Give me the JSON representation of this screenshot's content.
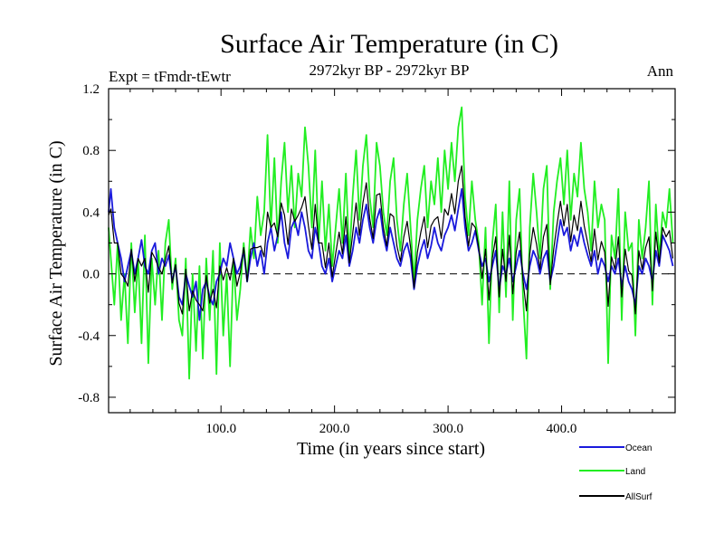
{
  "chart_data": {
    "type": "line",
    "title": "Surface Air Temperature (in C)",
    "subtitle_left": "Expt = tFmdr-tEwtr",
    "subtitle_center": "2972kyr BP - 2972kyr BP",
    "subtitle_right": "Ann",
    "xlabel": "Time (in years since start)",
    "ylabel": "Surface Air Temperature (in C)",
    "xlim": [
      1,
      500
    ],
    "ylim": [
      -0.9,
      1.2
    ],
    "x_ticks": [
      100,
      200,
      300,
      400
    ],
    "x_tick_labels": [
      "100.0",
      "200.0",
      "300.0",
      "400.0"
    ],
    "y_ticks": [
      -0.8,
      -0.4,
      0.0,
      0.4,
      0.8,
      1.2
    ],
    "y_tick_labels": [
      "-0.8",
      "-0.4",
      "0.0",
      "0.4",
      "0.8",
      "1.2"
    ],
    "zero_line": "dashed",
    "legend_position": "bottom-right",
    "series": [
      {
        "name": "Ocean",
        "color": "#1a1adc",
        "x": [
          1,
          3,
          6,
          9,
          12,
          15,
          18,
          21,
          24,
          27,
          30,
          33,
          36,
          39,
          42,
          45,
          48,
          51,
          54,
          57,
          60,
          63,
          66,
          69,
          72,
          75,
          78,
          81,
          84,
          87,
          90,
          93,
          96,
          99,
          102,
          105,
          108,
          111,
          114,
          117,
          120,
          123,
          126,
          129,
          132,
          135,
          138,
          141,
          144,
          147,
          150,
          153,
          156,
          159,
          162,
          165,
          168,
          171,
          174,
          177,
          180,
          183,
          186,
          189,
          192,
          195,
          198,
          201,
          204,
          207,
          210,
          213,
          216,
          219,
          222,
          225,
          228,
          231,
          234,
          237,
          240,
          243,
          246,
          249,
          252,
          255,
          258,
          261,
          264,
          267,
          270,
          273,
          276,
          279,
          282,
          285,
          288,
          291,
          294,
          297,
          300,
          303,
          306,
          309,
          312,
          315,
          318,
          321,
          324,
          327,
          330,
          333,
          336,
          339,
          342,
          345,
          348,
          351,
          354,
          357,
          360,
          363,
          366,
          369,
          372,
          375,
          378,
          381,
          384,
          387,
          390,
          393,
          396,
          399,
          402,
          405,
          408,
          411,
          414,
          417,
          420,
          423,
          426,
          429,
          432,
          435,
          438,
          441,
          444,
          447,
          450,
          453,
          456,
          459,
          462,
          465,
          468,
          471,
          474,
          477,
          480,
          483,
          486,
          489,
          492,
          495,
          498
        ],
        "values": [
          0.4,
          0.55,
          0.3,
          0.2,
          0.1,
          -0.05,
          0.05,
          0.15,
          0.0,
          0.1,
          0.22,
          0.05,
          0.0,
          0.15,
          0.2,
          0.0,
          0.1,
          0.05,
          0.12,
          -0.05,
          0.05,
          -0.15,
          -0.2,
          0.0,
          -0.08,
          -0.15,
          -0.05,
          -0.3,
          -0.1,
          -0.05,
          -0.15,
          -0.2,
          -0.05,
          0.0,
          0.1,
          0.05,
          0.2,
          0.1,
          0.0,
          0.05,
          0.15,
          -0.05,
          0.1,
          0.2,
          0.05,
          0.15,
          0.0,
          0.2,
          0.3,
          0.15,
          0.25,
          0.4,
          0.2,
          0.1,
          0.3,
          0.35,
          0.25,
          0.4,
          0.3,
          0.15,
          0.1,
          0.3,
          0.2,
          0.05,
          0.0,
          0.1,
          -0.05,
          0.05,
          0.15,
          0.1,
          0.25,
          0.05,
          0.15,
          0.3,
          0.2,
          0.35,
          0.45,
          0.3,
          0.2,
          0.35,
          0.42,
          0.25,
          0.15,
          0.3,
          0.2,
          0.1,
          0.05,
          0.15,
          0.2,
          0.1,
          -0.1,
          0.05,
          0.15,
          0.22,
          0.1,
          0.18,
          0.3,
          0.2,
          0.15,
          0.25,
          0.3,
          0.38,
          0.28,
          0.42,
          0.55,
          0.3,
          0.15,
          0.2,
          0.28,
          0.15,
          0.05,
          0.1,
          -0.05,
          0.05,
          0.15,
          -0.1,
          0.05,
          0.0,
          0.1,
          -0.05,
          0.05,
          0.15,
          0.0,
          -0.1,
          0.05,
          0.15,
          0.1,
          0.0,
          0.1,
          0.15,
          -0.05,
          0.05,
          0.2,
          0.35,
          0.25,
          0.3,
          0.15,
          0.25,
          0.18,
          0.3,
          0.2,
          0.12,
          0.05,
          0.15,
          0.0,
          0.1,
          0.05,
          -0.05,
          0.05,
          0.0,
          0.1,
          -0.08,
          0.05,
          -0.05,
          -0.1,
          -0.2,
          0.05,
          0.0,
          0.1,
          0.05,
          -0.05,
          0.15,
          0.05,
          0.25,
          0.2,
          0.15,
          0.05
        ]
      },
      {
        "name": "Land",
        "color": "#22ee22",
        "x": [
          1,
          3,
          6,
          9,
          12,
          15,
          18,
          21,
          24,
          27,
          30,
          33,
          36,
          39,
          42,
          45,
          48,
          51,
          54,
          57,
          60,
          63,
          66,
          69,
          72,
          75,
          78,
          81,
          84,
          87,
          90,
          93,
          96,
          99,
          102,
          105,
          108,
          111,
          114,
          117,
          120,
          123,
          126,
          129,
          132,
          135,
          138,
          141,
          144,
          147,
          150,
          153,
          156,
          159,
          162,
          165,
          168,
          171,
          174,
          177,
          180,
          183,
          186,
          189,
          192,
          195,
          198,
          201,
          204,
          207,
          210,
          213,
          216,
          219,
          222,
          225,
          228,
          231,
          234,
          237,
          240,
          243,
          246,
          249,
          252,
          255,
          258,
          261,
          264,
          267,
          270,
          273,
          276,
          279,
          282,
          285,
          288,
          291,
          294,
          297,
          300,
          303,
          306,
          309,
          312,
          315,
          318,
          321,
          324,
          327,
          330,
          333,
          336,
          339,
          342,
          345,
          348,
          351,
          354,
          357,
          360,
          363,
          366,
          369,
          372,
          375,
          378,
          381,
          384,
          387,
          390,
          393,
          396,
          399,
          402,
          405,
          408,
          411,
          414,
          417,
          420,
          423,
          426,
          429,
          432,
          435,
          438,
          441,
          444,
          447,
          450,
          453,
          456,
          459,
          462,
          465,
          468,
          471,
          474,
          477,
          480,
          483,
          486,
          489,
          492,
          495,
          498
        ],
        "values": [
          0.3,
          0.1,
          -0.2,
          0.2,
          -0.3,
          0.0,
          -0.45,
          0.2,
          -0.25,
          0.1,
          -0.45,
          0.25,
          -0.58,
          0.1,
          -0.2,
          0.15,
          -0.3,
          0.2,
          0.35,
          -0.1,
          0.1,
          -0.3,
          -0.4,
          0.1,
          -0.68,
          0.0,
          -0.5,
          0.05,
          -0.55,
          0.1,
          -0.3,
          0.15,
          -0.65,
          0.2,
          -0.4,
          0.0,
          -0.6,
          0.1,
          -0.3,
          -0.1,
          0.2,
          -0.05,
          0.3,
          0.1,
          0.5,
          0.25,
          0.4,
          0.9,
          0.3,
          0.75,
          0.2,
          0.6,
          0.85,
          0.4,
          0.7,
          0.3,
          0.65,
          0.5,
          0.95,
          0.7,
          0.3,
          0.8,
          0.2,
          0.6,
          0.15,
          0.45,
          0.05,
          0.3,
          0.55,
          0.2,
          0.65,
          0.1,
          0.5,
          0.8,
          0.35,
          0.7,
          0.9,
          0.5,
          0.3,
          0.85,
          0.7,
          0.4,
          0.25,
          0.6,
          0.75,
          0.35,
          0.15,
          0.45,
          0.65,
          0.3,
          -0.05,
          0.35,
          0.55,
          0.7,
          0.3,
          0.6,
          0.45,
          0.75,
          0.4,
          0.8,
          0.55,
          0.85,
          0.6,
          0.95,
          1.08,
          0.5,
          0.25,
          0.6,
          0.35,
          0.2,
          -0.2,
          0.3,
          -0.45,
          0.2,
          0.45,
          -0.25,
          0.4,
          -0.15,
          0.6,
          -0.3,
          0.35,
          0.55,
          -0.15,
          -0.55,
          0.3,
          0.65,
          0.4,
          0.1,
          0.55,
          0.7,
          -0.1,
          0.4,
          0.6,
          0.75,
          0.45,
          0.8,
          0.35,
          0.65,
          0.5,
          0.85,
          0.55,
          0.4,
          0.15,
          0.6,
          0.3,
          0.45,
          0.35,
          -0.58,
          0.25,
          0.1,
          0.55,
          -0.3,
          0.4,
          0.15,
          0.2,
          -0.4,
          0.35,
          0.1,
          0.3,
          0.6,
          -0.2,
          0.45,
          0.1,
          0.4,
          0.3,
          0.55,
          0.2
        ]
      },
      {
        "name": "AllSurf",
        "color": "#000000",
        "x": [
          1,
          3,
          6,
          9,
          12,
          15,
          18,
          21,
          24,
          27,
          30,
          33,
          36,
          39,
          42,
          45,
          48,
          51,
          54,
          57,
          60,
          63,
          66,
          69,
          72,
          75,
          78,
          81,
          84,
          87,
          90,
          93,
          96,
          99,
          102,
          105,
          108,
          111,
          114,
          117,
          120,
          123,
          126,
          129,
          132,
          135,
          138,
          141,
          144,
          147,
          150,
          153,
          156,
          159,
          162,
          165,
          168,
          171,
          174,
          177,
          180,
          183,
          186,
          189,
          192,
          195,
          198,
          201,
          204,
          207,
          210,
          213,
          216,
          219,
          222,
          225,
          228,
          231,
          234,
          237,
          240,
          243,
          246,
          249,
          252,
          255,
          258,
          261,
          264,
          267,
          270,
          273,
          276,
          279,
          282,
          285,
          288,
          291,
          294,
          297,
          300,
          303,
          306,
          309,
          312,
          315,
          318,
          321,
          324,
          327,
          330,
          333,
          336,
          339,
          342,
          345,
          348,
          351,
          354,
          357,
          360,
          363,
          366,
          369,
          372,
          375,
          378,
          381,
          384,
          387,
          390,
          393,
          396,
          399,
          402,
          405,
          408,
          411,
          414,
          417,
          420,
          423,
          426,
          429,
          432,
          435,
          438,
          441,
          444,
          447,
          450,
          453,
          456,
          459,
          462,
          465,
          468,
          471,
          474,
          477,
          480,
          483,
          486,
          489,
          492,
          495,
          498
        ],
        "values": [
          0.38,
          0.42,
          0.2,
          0.2,
          0.0,
          -0.03,
          -0.08,
          0.16,
          -0.05,
          0.1,
          0.05,
          0.1,
          -0.12,
          0.14,
          0.1,
          0.04,
          0.0,
          0.09,
          0.18,
          -0.06,
          0.06,
          -0.19,
          -0.26,
          0.03,
          -0.24,
          -0.11,
          -0.17,
          -0.2,
          -0.24,
          -0.01,
          -0.19,
          -0.1,
          -0.22,
          0.05,
          -0.04,
          0.04,
          -0.04,
          0.1,
          -0.08,
          0.01,
          0.17,
          -0.05,
          0.16,
          0.17,
          0.17,
          0.18,
          0.11,
          0.4,
          0.3,
          0.33,
          0.24,
          0.46,
          0.38,
          0.19,
          0.42,
          0.34,
          0.38,
          0.43,
          0.5,
          0.31,
          0.16,
          0.45,
          0.2,
          0.2,
          0.04,
          0.2,
          -0.02,
          0.13,
          0.27,
          0.13,
          0.37,
          0.07,
          0.26,
          0.46,
          0.25,
          0.46,
          0.59,
          0.36,
          0.23,
          0.51,
          0.52,
          0.3,
          0.18,
          0.39,
          0.37,
          0.18,
          0.08,
          0.24,
          0.34,
          0.17,
          -0.09,
          0.14,
          0.27,
          0.37,
          0.17,
          0.31,
          0.35,
          0.37,
          0.23,
          0.42,
          0.38,
          0.52,
          0.39,
          0.6,
          0.7,
          0.37,
          0.18,
          0.33,
          0.3,
          0.17,
          -0.03,
          0.16,
          -0.17,
          0.1,
          0.24,
          -0.15,
          0.16,
          -0.05,
          0.25,
          -0.13,
          0.14,
          0.27,
          -0.04,
          -0.24,
          0.13,
          0.3,
          0.19,
          0.03,
          0.24,
          0.32,
          -0.07,
          0.16,
          0.32,
          0.47,
          0.31,
          0.45,
          0.21,
          0.38,
          0.28,
          0.47,
          0.31,
          0.2,
          0.08,
          0.29,
          0.09,
          0.21,
          0.14,
          -0.21,
          0.11,
          0.03,
          0.24,
          -0.15,
          0.16,
          0.02,
          -0.01,
          -0.26,
          0.15,
          0.03,
          0.17,
          0.24,
          -0.11,
          0.27,
          0.07,
          0.3,
          0.24,
          0.28,
          0.1
        ]
      }
    ]
  }
}
